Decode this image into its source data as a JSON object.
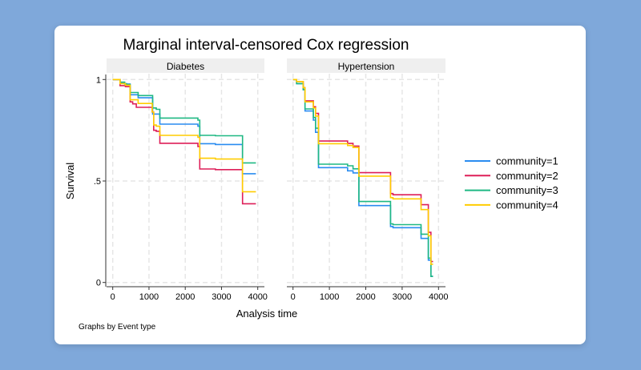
{
  "chart_data": {
    "type": "line",
    "title": "Marginal interval-censored Cox regression",
    "xlabel": "Analysis time",
    "ylabel": "Survival",
    "note": "Graphs by Event type",
    "xlim": [
      0,
      4000
    ],
    "ylim": [
      0,
      1
    ],
    "xticks": [
      "0",
      "1000",
      "2000",
      "3000",
      "4000"
    ],
    "yticks": [
      "0",
      ".5",
      "1"
    ],
    "grid": true,
    "legend_position": "right",
    "series_names": [
      "community=1",
      "community=2",
      "community=3",
      "community=4"
    ],
    "colors": [
      "#2a8cf0",
      "#de1f58",
      "#1fb883",
      "#ffcc00"
    ],
    "panels": [
      {
        "label": "Diabetes",
        "series": [
          {
            "name": "community=1",
            "steps": [
              [
                0,
                1
              ],
              [
                200,
                0.985
              ],
              [
                330,
                0.978
              ],
              [
                480,
                0.925
              ],
              [
                700,
                0.91
              ],
              [
                1100,
                0.83
              ],
              [
                1300,
                0.78
              ],
              [
                2350,
                0.77
              ],
              [
                2400,
                0.684
              ],
              [
                2830,
                0.68
              ],
              [
                3580,
                0.536
              ],
              [
                3950,
                0.536
              ]
            ]
          },
          {
            "name": "community=2",
            "steps": [
              [
                0,
                1
              ],
              [
                200,
                0.97
              ],
              [
                350,
                0.965
              ],
              [
                480,
                0.89
              ],
              [
                550,
                0.88
              ],
              [
                650,
                0.863
              ],
              [
                1090,
                0.84
              ],
              [
                1130,
                0.75
              ],
              [
                1200,
                0.745
              ],
              [
                1300,
                0.686
              ],
              [
                2350,
                0.67
              ],
              [
                2400,
                0.559
              ],
              [
                2830,
                0.556
              ],
              [
                3580,
                0.388
              ],
              [
                3950,
                0.388
              ]
            ]
          },
          {
            "name": "community=3",
            "steps": [
              [
                0,
                1
              ],
              [
                200,
                0.987
              ],
              [
                330,
                0.98
              ],
              [
                380,
                0.975
              ],
              [
                480,
                0.936
              ],
              [
                700,
                0.921
              ],
              [
                1100,
                0.86
              ],
              [
                1200,
                0.853
              ],
              [
                1300,
                0.81
              ],
              [
                2350,
                0.8
              ],
              [
                2400,
                0.725
              ],
              [
                2830,
                0.723
              ],
              [
                3580,
                0.589
              ],
              [
                3950,
                0.589
              ]
            ]
          },
          {
            "name": "community=4",
            "steps": [
              [
                0,
                1
              ],
              [
                200,
                0.98
              ],
              [
                350,
                0.972
              ],
              [
                480,
                0.9
              ],
              [
                700,
                0.882
              ],
              [
                1090,
                0.84
              ],
              [
                1130,
                0.776
              ],
              [
                1200,
                0.77
              ],
              [
                1300,
                0.725
              ],
              [
                2350,
                0.715
              ],
              [
                2400,
                0.612
              ],
              [
                2830,
                0.608
              ],
              [
                3580,
                0.447
              ],
              [
                3950,
                0.447
              ]
            ]
          }
        ]
      },
      {
        "label": "Hypertension",
        "series": [
          {
            "name": "community=1",
            "steps": [
              [
                0,
                1
              ],
              [
                100,
                0.98
              ],
              [
                280,
                0.95
              ],
              [
                330,
                0.845
              ],
              [
                560,
                0.8
              ],
              [
                620,
                0.74
              ],
              [
                700,
                0.566
              ],
              [
                1500,
                0.55
              ],
              [
                1650,
                0.54
              ],
              [
                1810,
                0.379
              ],
              [
                2680,
                0.276
              ],
              [
                2750,
                0.27
              ],
              [
                3520,
                0.217
              ],
              [
                3720,
                0.11
              ],
              [
                3790,
                0.03
              ],
              [
                3850,
                0.03
              ]
            ]
          },
          {
            "name": "community=2",
            "steps": [
              [
                0,
                1
              ],
              [
                100,
                0.99
              ],
              [
                280,
                0.96
              ],
              [
                330,
                0.895
              ],
              [
                560,
                0.866
              ],
              [
                620,
                0.833
              ],
              [
                700,
                0.697
              ],
              [
                1500,
                0.685
              ],
              [
                1650,
                0.672
              ],
              [
                1810,
                0.541
              ],
              [
                2680,
                0.438
              ],
              [
                2750,
                0.432
              ],
              [
                3520,
                0.383
              ],
              [
                3720,
                0.247
              ],
              [
                3790,
                0.103
              ],
              [
                3850,
                0.103
              ]
            ]
          },
          {
            "name": "community=3",
            "steps": [
              [
                0,
                1
              ],
              [
                100,
                0.98
              ],
              [
                280,
                0.95
              ],
              [
                330,
                0.855
              ],
              [
                560,
                0.813
              ],
              [
                620,
                0.76
              ],
              [
                700,
                0.583
              ],
              [
                1500,
                0.575
              ],
              [
                1650,
                0.56
              ],
              [
                1810,
                0.399
              ],
              [
                2680,
                0.289
              ],
              [
                2750,
                0.285
              ],
              [
                3520,
                0.238
              ],
              [
                3720,
                0.12
              ],
              [
                3790,
                0.03
              ],
              [
                3850,
                0.03
              ]
            ]
          },
          {
            "name": "community=4",
            "steps": [
              [
                0,
                1
              ],
              [
                100,
                0.99
              ],
              [
                280,
                0.96
              ],
              [
                330,
                0.89
              ],
              [
                560,
                0.86
              ],
              [
                620,
                0.82
              ],
              [
                700,
                0.684
              ],
              [
                1500,
                0.675
              ],
              [
                1650,
                0.665
              ],
              [
                1810,
                0.524
              ],
              [
                2680,
                0.418
              ],
              [
                2750,
                0.412
              ],
              [
                3520,
                0.359
              ],
              [
                3720,
                0.23
              ],
              [
                3790,
                0.09
              ],
              [
                3850,
                0.09
              ]
            ]
          }
        ]
      }
    ]
  }
}
